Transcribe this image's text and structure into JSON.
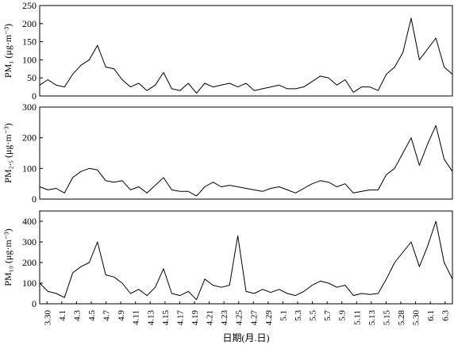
{
  "chart_data": [
    {
      "type": "line",
      "ylabel": "PM₁ (μg·m⁻³)",
      "ylim": [
        0,
        250
      ],
      "yticks": [
        0,
        50,
        100,
        150,
        200,
        250
      ],
      "grid": false,
      "series": [
        {
          "color": "#000000",
          "points": [
            [
              0,
              30
            ],
            [
              1,
              45
            ],
            [
              2,
              30
            ],
            [
              3,
              25
            ],
            [
              4,
              60
            ],
            [
              5,
              85
            ],
            [
              6,
              100
            ],
            [
              7,
              140
            ],
            [
              8,
              80
            ],
            [
              9,
              75
            ],
            [
              10,
              45
            ],
            [
              11,
              25
            ],
            [
              12,
              35
            ],
            [
              13,
              15
            ],
            [
              14,
              30
            ],
            [
              15,
              65
            ],
            [
              16,
              20
            ],
            [
              17,
              15
            ],
            [
              18,
              35
            ],
            [
              19,
              8
            ],
            [
              20,
              35
            ],
            [
              21,
              25
            ],
            [
              22,
              30
            ],
            [
              23,
              35
            ],
            [
              24,
              25
            ],
            [
              25,
              35
            ],
            [
              26,
              15
            ],
            [
              27,
              20
            ],
            [
              28,
              25
            ],
            [
              29,
              30
            ],
            [
              30,
              20
            ],
            [
              31,
              20
            ],
            [
              32,
              25
            ],
            [
              33,
              40
            ],
            [
              34,
              55
            ],
            [
              35,
              50
            ],
            [
              36,
              30
            ],
            [
              37,
              45
            ],
            [
              38,
              10
            ],
            [
              39,
              25
            ],
            [
              40,
              25
            ],
            [
              41,
              15
            ],
            [
              42,
              60
            ],
            [
              43,
              80
            ],
            [
              44,
              120
            ],
            [
              45,
              215
            ],
            [
              46,
              100
            ],
            [
              47,
              130
            ],
            [
              48,
              160
            ],
            [
              49,
              80
            ],
            [
              50,
              60
            ]
          ]
        }
      ]
    },
    {
      "type": "line",
      "ylabel": "PM₂.₅ (μg·m⁻³)",
      "ylim": [
        0,
        300
      ],
      "yticks": [
        0,
        100,
        200,
        300
      ],
      "grid": false,
      "series": [
        {
          "color": "#000000",
          "points": [
            [
              0,
              40
            ],
            [
              1,
              30
            ],
            [
              2,
              35
            ],
            [
              3,
              20
            ],
            [
              4,
              70
            ],
            [
              5,
              90
            ],
            [
              6,
              100
            ],
            [
              7,
              95
            ],
            [
              8,
              60
            ],
            [
              9,
              55
            ],
            [
              10,
              60
            ],
            [
              11,
              30
            ],
            [
              12,
              40
            ],
            [
              13,
              20
            ],
            [
              14,
              45
            ],
            [
              15,
              70
            ],
            [
              16,
              30
            ],
            [
              17,
              25
            ],
            [
              18,
              25
            ],
            [
              19,
              10
            ],
            [
              20,
              40
            ],
            [
              21,
              55
            ],
            [
              22,
              40
            ],
            [
              23,
              45
            ],
            [
              24,
              40
            ],
            [
              25,
              35
            ],
            [
              26,
              30
            ],
            [
              27,
              25
            ],
            [
              28,
              35
            ],
            [
              29,
              40
            ],
            [
              30,
              30
            ],
            [
              31,
              20
            ],
            [
              32,
              35
            ],
            [
              33,
              50
            ],
            [
              34,
              60
            ],
            [
              35,
              55
            ],
            [
              36,
              40
            ],
            [
              37,
              50
            ],
            [
              38,
              20
            ],
            [
              39,
              25
            ],
            [
              40,
              30
            ],
            [
              41,
              30
            ],
            [
              42,
              80
            ],
            [
              43,
              100
            ],
            [
              44,
              150
            ],
            [
              45,
              200
            ],
            [
              46,
              110
            ],
            [
              47,
              180
            ],
            [
              48,
              240
            ],
            [
              49,
              130
            ],
            [
              50,
              90
            ]
          ]
        }
      ]
    },
    {
      "type": "line",
      "ylabel": "PM₁₀ (μg·m⁻³)",
      "ylim": [
        0,
        450
      ],
      "yticks": [
        0,
        100,
        200,
        300,
        400
      ],
      "grid": false,
      "xlabel": "日期(月.日)",
      "categories": [
        "3.30",
        "4.1",
        "4.3",
        "4.5",
        "4.7",
        "4.9",
        "4.11",
        "4.13",
        "4.15",
        "4.17",
        "4.19",
        "4.21",
        "4.23",
        "4.25",
        "4.27",
        "4.29",
        "5.1",
        "5.3",
        "5.5",
        "5.7",
        "5.9",
        "5.11",
        "5.13",
        "5.15",
        "5.28",
        "5.30",
        "6.1",
        "6.3"
      ],
      "series": [
        {
          "color": "#000000",
          "points": [
            [
              0,
              100
            ],
            [
              1,
              60
            ],
            [
              2,
              50
            ],
            [
              3,
              30
            ],
            [
              4,
              150
            ],
            [
              5,
              180
            ],
            [
              6,
              200
            ],
            [
              7,
              300
            ],
            [
              8,
              140
            ],
            [
              9,
              130
            ],
            [
              10,
              100
            ],
            [
              11,
              50
            ],
            [
              12,
              70
            ],
            [
              13,
              40
            ],
            [
              14,
              80
            ],
            [
              15,
              170
            ],
            [
              16,
              50
            ],
            [
              17,
              40
            ],
            [
              18,
              60
            ],
            [
              19,
              20
            ],
            [
              20,
              120
            ],
            [
              21,
              90
            ],
            [
              22,
              80
            ],
            [
              23,
              90
            ],
            [
              24,
              330
            ],
            [
              25,
              60
            ],
            [
              26,
              50
            ],
            [
              27,
              70
            ],
            [
              28,
              55
            ],
            [
              29,
              70
            ],
            [
              30,
              50
            ],
            [
              31,
              40
            ],
            [
              32,
              60
            ],
            [
              33,
              90
            ],
            [
              34,
              110
            ],
            [
              35,
              100
            ],
            [
              36,
              80
            ],
            [
              37,
              90
            ],
            [
              38,
              40
            ],
            [
              39,
              50
            ],
            [
              40,
              45
            ],
            [
              41,
              50
            ],
            [
              42,
              120
            ],
            [
              43,
              200
            ],
            [
              44,
              250
            ],
            [
              45,
              300
            ],
            [
              46,
              180
            ],
            [
              47,
              280
            ],
            [
              48,
              400
            ],
            [
              49,
              200
            ],
            [
              50,
              120
            ]
          ]
        }
      ]
    }
  ]
}
